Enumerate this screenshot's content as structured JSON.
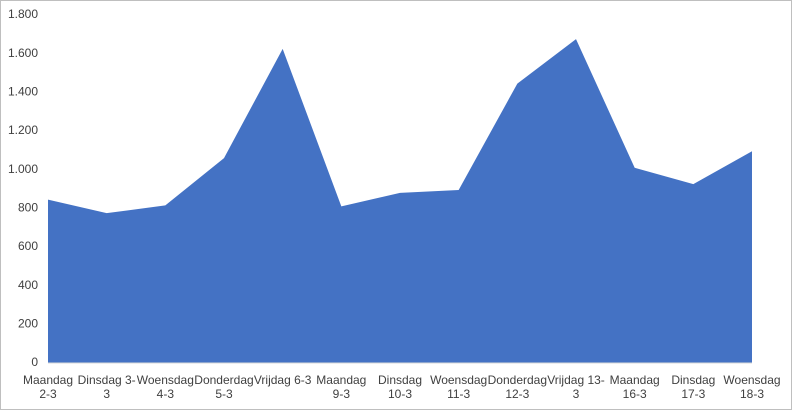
{
  "chart_data": {
    "type": "area",
    "categories": [
      "Maandag 2-3",
      "Dinsdag 3-3",
      "Woensdag 4-3",
      "Donderdag 5-3",
      "Vrijdag 6-3",
      "Maandag 9-3",
      "Dinsdag 10-3",
      "Woensdag 11-3",
      "Donderdag 12-3",
      "Vrijdag 13-3",
      "Maandag 16-3",
      "Dinsdag 17-3",
      "Woensdag 18-3"
    ],
    "values": [
      845,
      775,
      815,
      1060,
      1625,
      810,
      880,
      895,
      1445,
      1675,
      1010,
      925,
      1095
    ],
    "color": "#4472c4",
    "ylim": [
      0,
      1800
    ],
    "yticks": [
      0,
      200,
      400,
      600,
      800,
      {
        "value": 1000,
        "label": "1.000"
      },
      {
        "value": 1200,
        "label": "1.200"
      },
      {
        "value": 1400,
        "label": "1.400"
      },
      {
        "value": 1600,
        "label": "1.600"
      },
      {
        "value": 1800,
        "label": "1.800"
      }
    ],
    "grid": false
  }
}
